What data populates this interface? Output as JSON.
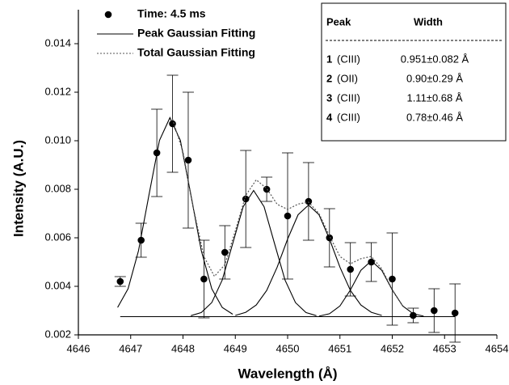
{
  "chart_data": {
    "type": "scatter",
    "x_label": "Wavelength (Å)",
    "y_label": "Intensity (A.U.)",
    "xlim": [
      4646,
      4654
    ],
    "xticks": [
      4646,
      4647,
      4648,
      4649,
      4650,
      4651,
      4652,
      4653,
      4654
    ],
    "ylim": [
      0.002,
      0.0154
    ],
    "yticks": [
      0.002,
      0.004,
      0.006,
      0.008,
      {
        "value": 0.01,
        "label": "0.010"
      },
      0.012,
      0.014
    ],
    "legend": "upper left",
    "series": [
      {
        "name": "Time: 4.5 ms",
        "type": "scatter",
        "color": "#000000",
        "x": [
          4646.8,
          4647.2,
          4647.5,
          4647.8,
          4648.1,
          4648.4,
          4648.8,
          4649.2,
          4649.6,
          4650.0,
          4650.4,
          4650.8,
          4651.2,
          4651.6,
          4652.0,
          4652.4,
          4652.8,
          4653.2
        ],
        "values": [
          0.0042,
          0.0059,
          0.0095,
          0.0107,
          0.0092,
          0.0043,
          0.0054,
          0.0076,
          0.008,
          0.0069,
          0.0075,
          0.006,
          0.0047,
          0.005,
          0.0043,
          0.0028,
          0.003,
          0.0029
        ],
        "errors": [
          0.0002,
          0.0007,
          0.0018,
          0.002,
          0.0028,
          0.0016,
          0.0011,
          0.002,
          0.0005,
          0.0026,
          0.0016,
          0.0012,
          0.0011,
          0.0008,
          0.0019,
          0.0003,
          0.0009,
          0.0012
        ]
      },
      {
        "name": "Peak Gaussian Fitting",
        "type": "line",
        "style": "solid",
        "color": "#000000",
        "curves": [
          {
            "x": [
              4646.75,
              4646.95,
              4647.15,
              4647.35,
              4647.55,
              4647.75,
              4647.95,
              4648.15,
              4648.35,
              4648.55,
              4648.75,
              4648.95
            ],
            "values": [
              0.00313,
              0.0039,
              0.00547,
              0.00777,
              0.01001,
              0.01095,
              0.01001,
              0.00777,
              0.00547,
              0.0039,
              0.00313,
              0.00285
            ]
          },
          {
            "x": [
              4648.15,
              4648.35,
              4648.55,
              4648.75,
              4648.95,
              4649.15,
              4649.35,
              4649.55,
              4649.75,
              4649.95,
              4650.15,
              4650.35,
              4650.55
            ],
            "values": [
              0.00279,
              0.00292,
              0.00333,
              0.00426,
              0.00576,
              0.00728,
              0.00795,
              0.00728,
              0.00576,
              0.00426,
              0.00333,
              0.00292,
              0.00279
            ]
          },
          {
            "x": [
              4649,
              4649.2,
              4649.4,
              4649.6,
              4649.8,
              4650,
              4650.2,
              4650.4,
              4650.6,
              4650.8,
              4651,
              4651.2,
              4651.4,
              4651.6,
              4651.8
            ],
            "values": [
              0.0028,
              0.00293,
              0.00323,
              0.00383,
              0.00479,
              0.00595,
              0.00695,
              0.00735,
              0.00695,
              0.00595,
              0.00479,
              0.00383,
              0.00323,
              0.00293,
              0.0028
            ]
          },
          {
            "x": [
              4650.6,
              4650.8,
              4651,
              4651.2,
              4651.4,
              4651.6,
              4651.8,
              4652,
              4652.2,
              4652.4,
              4652.6
            ],
            "values": [
              0.00277,
              0.00287,
              0.00319,
              0.00385,
              0.00466,
              0.00505,
              0.00466,
              0.00385,
              0.00319,
              0.00287,
              0.00277
            ]
          },
          {
            "x": [
              4646.8,
              4653.2
            ],
            "values": [
              0.00275,
              0.00275
            ]
          }
        ]
      },
      {
        "name": "Total Gaussian Fitting",
        "type": "line",
        "style": "dotted",
        "color": "#555555",
        "x": [
          4647.8,
          4648,
          4648.2,
          4648.4,
          4648.6,
          4648.8,
          4649,
          4649.2,
          4649.4,
          4649.6,
          4649.8,
          4650,
          4650.2,
          4650.4,
          4650.6,
          4650.8,
          4651,
          4651.2,
          4651.4,
          4651.6,
          4651.8,
          4652,
          4652.2
        ],
        "values": [
          0.01089,
          0.00953,
          0.00722,
          0.00523,
          0.00441,
          0.00489,
          0.00629,
          0.00775,
          0.00839,
          0.00803,
          0.00738,
          0.00717,
          0.00739,
          0.00747,
          0.007,
          0.00608,
          0.00523,
          0.00493,
          0.00514,
          0.00523,
          0.00472,
          0.00387,
          0.00319
        ]
      }
    ],
    "table": {
      "columns": [
        "Peak",
        "Width"
      ],
      "rows": [
        {
          "peak": "1",
          "ion": "(CIII)",
          "width": "0.951±0.082 Å"
        },
        {
          "peak": "2",
          "ion": "(OII)",
          "width": "0.90±0.29 Å"
        },
        {
          "peak": "3",
          "ion": "(CIII)",
          "width": "1.11±0.68 Å"
        },
        {
          "peak": "4",
          "ion": "(CIII)",
          "width": "0.78±0.46 Å"
        }
      ]
    }
  }
}
